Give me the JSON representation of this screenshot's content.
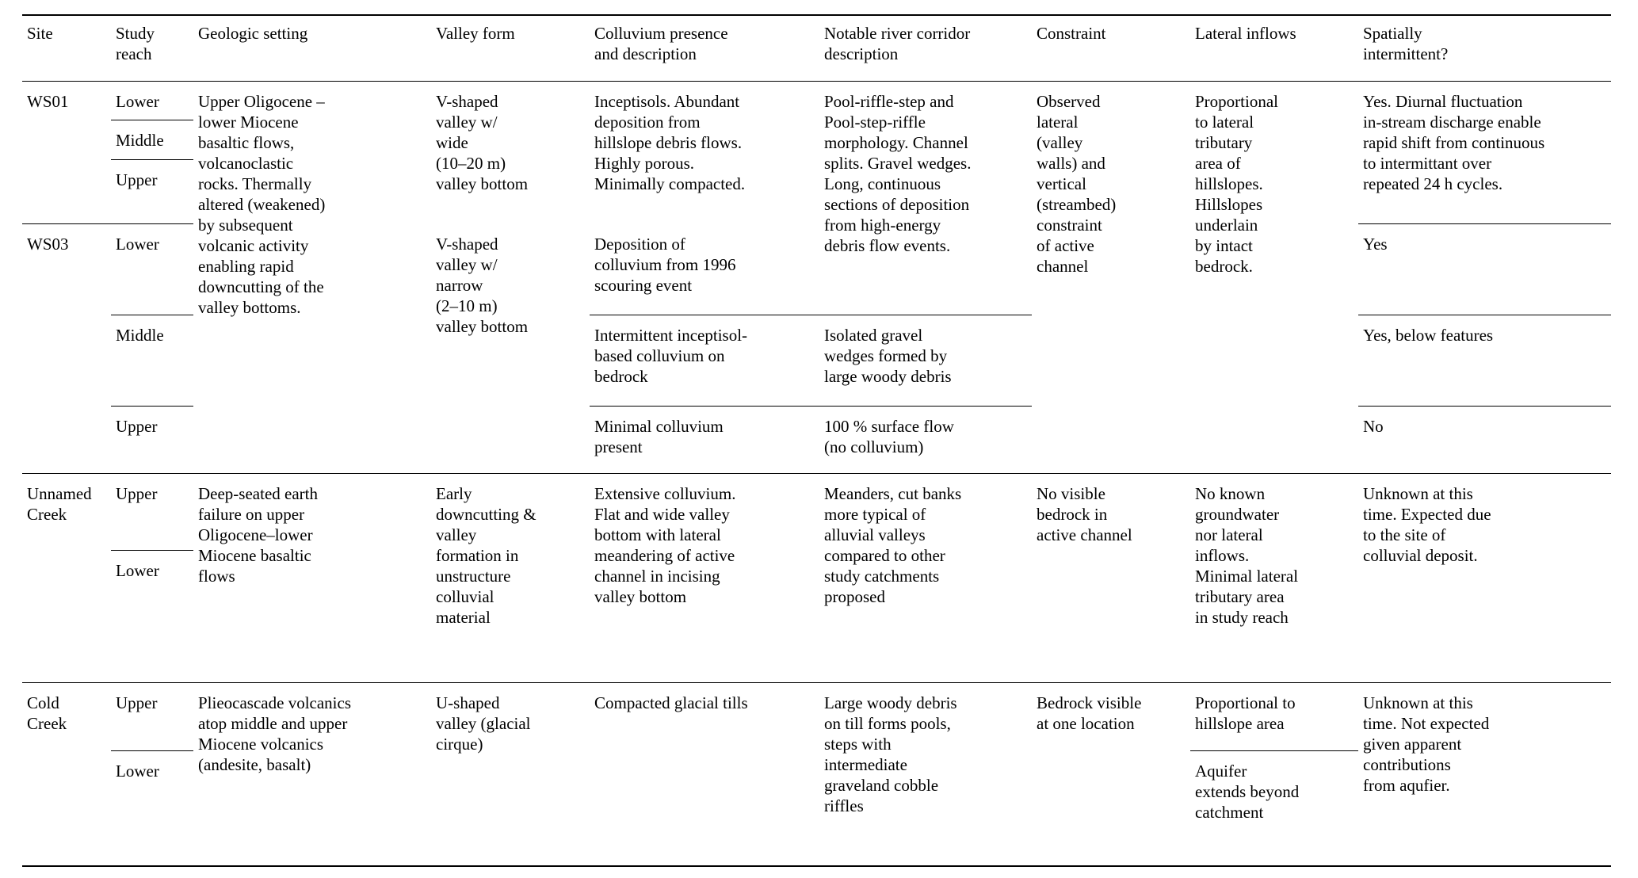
{
  "page": {
    "background_color": "#ffffff",
    "rule_color": "#000000"
  },
  "table": {
    "header": {
      "site": "Site",
      "study_reach": "Study\nreach",
      "geologic_setting": "Geologic setting",
      "valley_form": "Valley form",
      "colluvium": "Colluvium presence\nand description",
      "river_corridor": "Notable river corridor\ndescription",
      "constraint": "Constraint",
      "lateral_inflows": "Lateral inflows",
      "spatially_intermittent": "Spatially\nintermittent?"
    },
    "cells": {
      "ws01_site": "WS01",
      "ws01_reach_lower": "Lower",
      "ws01_reach_middle": "Middle",
      "ws01_reach_upper": "Upper",
      "groupA_geologic": "Upper Oligocene –\nlower Miocene\nbasaltic flows,\nvolcanoclastic\nrocks. Thermally\naltered (weakened)\nby subsequent\nvolcanic activity\nenabling rapid\ndowncutting of the\nvalley bottoms.",
      "ws01_valley": "V-shaped\nvalley w/\nwide\n(10–20 m)\nvalley bottom",
      "ws01_colluvium": "Inceptisols. Abundant\ndeposition from\nhillslope debris flows.\nHighly porous.\nMinimally compacted.",
      "groupA_river": "Pool-riffle-step and\nPool-step-riffle\nmorphology. Channel\nsplits. Gravel wedges.\nLong, continuous\nsections of deposition\nfrom high-energy\ndebris flow events.",
      "groupA_constraint": "Observed\nlateral\n(valley\nwalls) and\nvertical\n(streambed)\nconstraint\nof active\nchannel",
      "groupA_lateral": "Proportional\nto lateral\ntributary\narea of\nhillslopes.\nHillslopes\nunderlain\nby intact\nbedrock.",
      "ws01_spatial": "Yes. Diurnal fluctuation\nin-stream discharge enable\nrapid shift from continuous\nto intermittant over\nrepeated 24 h cycles.",
      "ws03_site": "WS03",
      "ws03_reach_lower": "Lower",
      "ws03_reach_middle": "Middle",
      "ws03_reach_upper": "Upper",
      "ws03_valley": "V-shaped\nvalley w/\nnarrow\n(2–10 m)\nvalley bottom",
      "ws03_colluvium_lower": "Deposition of\ncolluvium from 1996\nscouring event",
      "ws03_colluvium_middle": "Intermittent inceptisol-\nbased colluvium on\nbedrock",
      "ws03_colluvium_upper": "Minimal colluvium\npresent",
      "ws03_river_middle": "Isolated gravel\nwedges formed by\nlarge woody debris",
      "ws03_river_upper": "100 % surface flow\n(no colluvium)",
      "ws03_spatial_lower": "Yes",
      "ws03_spatial_middle": "Yes, below features",
      "ws03_spatial_upper": "No",
      "unnamed_site": "Unnamed\nCreek",
      "unnamed_reach_upper": "Upper",
      "unnamed_reach_lower": "Lower",
      "unnamed_geologic": "Deep-seated earth\nfailure on upper\nOligocene–lower\nMiocene basaltic\nflows",
      "unnamed_valley": "Early\ndowncutting &\nvalley\nformation in\nunstructure\ncolluvial\nmaterial",
      "unnamed_colluvium": "Extensive colluvium.\nFlat and wide valley\nbottom with lateral\nmeandering of active\nchannel in incising\nvalley bottom",
      "unnamed_river": "Meanders, cut banks\nmore typical of\nalluvial valleys\ncompared to other\nstudy catchments\nproposed",
      "unnamed_constraint": "No visible\nbedrock in\nactive channel",
      "unnamed_lateral": "No known\ngroundwater\nnor lateral\ninflows.\nMinimal lateral\ntributary area\nin study reach",
      "unnamed_spatial": "Unknown at this\ntime. Expected due\nto the site of\ncolluvial deposit.",
      "cold_site": "Cold\nCreek",
      "cold_reach_upper": "Upper",
      "cold_reach_lower": "Lower",
      "cold_geologic": "Plieocascade volcanics\natop middle and upper\nMiocene volcanics\n(andesite, basalt)",
      "cold_valley": "U-shaped\nvalley (glacial\ncirque)",
      "cold_colluvium": "Compacted glacial tills",
      "cold_river": "Large woody debris\non till forms pools,\nsteps with\nintermediate\ngraveland cobble\nriffles",
      "cold_constraint": "Bedrock visible\nat one location",
      "cold_lateral_upper": "Proportional to\nhillslope area",
      "cold_lateral_lower": "Aquifer\nextends beyond\ncatchment",
      "cold_spatial": "Unknown at this\ntime. Not expected\ngiven apparent\ncontributions\nfrom aqufier."
    }
  }
}
